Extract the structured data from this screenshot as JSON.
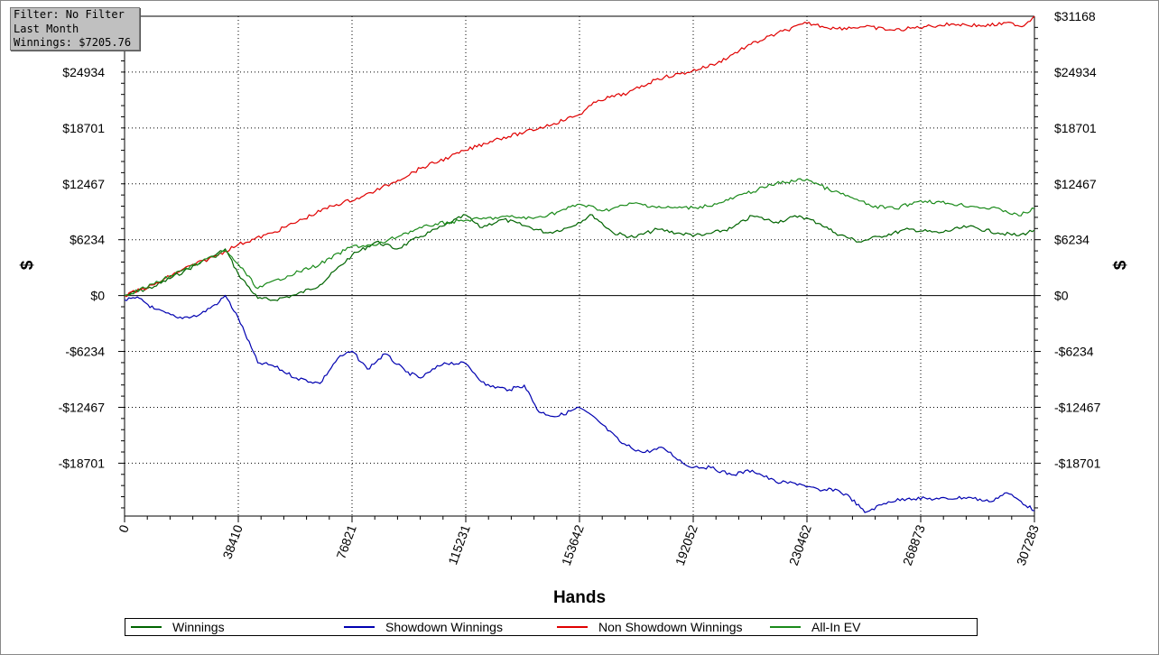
{
  "filter_box": {
    "line1": "Filter: No Filter",
    "line2": "Last Month",
    "line3": "Winnings: $7205.76"
  },
  "legend": [
    {
      "label": "Winnings",
      "color": "#006400"
    },
    {
      "label": "Showdown Winnings",
      "color": "#0000b0"
    },
    {
      "label": "Non Showdown Winnings",
      "color": "#e00000"
    },
    {
      "label": "All-In EV",
      "color": "#1a8a1a"
    }
  ],
  "chart_data": {
    "type": "line",
    "xlabel": "Hands",
    "ylabel": "$",
    "ylabel_right": "$",
    "x_ticks": [
      0,
      38410,
      76821,
      115231,
      153642,
      192052,
      230462,
      268873,
      307283
    ],
    "y_ticks": [
      -18701,
      -12467,
      -6234,
      0,
      6234,
      12467,
      18701,
      24934,
      31168
    ],
    "y_tick_labels": [
      "-$18701",
      "-$12467",
      "-$6234",
      "$0",
      "$6234",
      "$12467",
      "$18701",
      "$24934",
      "$31168"
    ],
    "xlim": [
      0,
      307283
    ],
    "ylim": [
      -24600,
      31168
    ],
    "grid": true,
    "legend_position": "bottom",
    "series": [
      {
        "name": "Winnings",
        "color": "#006400",
        "x": [
          0,
          10000,
          20000,
          30000,
          34000,
          38410,
          45000,
          50000,
          58000,
          66000,
          76821,
          85000,
          92000,
          100000,
          108000,
          115231,
          120000,
          128000,
          135000,
          143000,
          150000,
          158000,
          165000,
          172000,
          180000,
          188000,
          195000,
          205000,
          212000,
          220000,
          228000,
          235000,
          240000,
          248000,
          255000,
          265000,
          275000,
          285000,
          295000,
          302000,
          307283
        ],
        "y": [
          0,
          1000,
          2700,
          4400,
          5200,
          2400,
          -300,
          -500,
          100,
          1200,
          4500,
          6000,
          5200,
          6600,
          7800,
          9000,
          7600,
          8500,
          7800,
          7000,
          7600,
          9000,
          7000,
          6500,
          7400,
          6900,
          6700,
          7500,
          8900,
          8200,
          8900,
          8000,
          7000,
          6000,
          6600,
          7400,
          7000,
          7700,
          7000,
          6700,
          7300
        ]
      },
      {
        "name": "Showdown Winnings",
        "color": "#0000b0",
        "x": [
          0,
          5000,
          10000,
          18000,
          25000,
          32000,
          34000,
          38410,
          45000,
          50000,
          58000,
          66000,
          72000,
          76821,
          82000,
          88000,
          95000,
          100000,
          108000,
          115231,
          122000,
          130000,
          135000,
          140000,
          146000,
          153642,
          160000,
          168000,
          175000,
          182000,
          190000,
          198000,
          205000,
          212000,
          220000,
          228000,
          235000,
          240000,
          245000,
          250000,
          258000,
          265000,
          275000,
          285000,
          292000,
          298000,
          302000,
          307283
        ],
        "y": [
          -500,
          -300,
          -1500,
          -2500,
          -2200,
          -700,
          0,
          -2500,
          -7500,
          -7800,
          -9200,
          -9800,
          -7000,
          -6200,
          -8200,
          -6500,
          -8500,
          -9200,
          -7500,
          -7600,
          -10000,
          -10500,
          -10000,
          -13000,
          -13500,
          -12500,
          -14000,
          -16500,
          -17500,
          -17000,
          -19000,
          -19200,
          -20000,
          -19500,
          -20800,
          -21000,
          -21800,
          -21600,
          -22500,
          -24200,
          -23000,
          -22600,
          -22700,
          -22500,
          -23000,
          -22000,
          -22800,
          -24000
        ]
      },
      {
        "name": "Non Showdown Winnings",
        "color": "#e00000",
        "x": [
          0,
          10000,
          20000,
          30000,
          38410,
          50000,
          60000,
          70000,
          80000,
          90000,
          100000,
          110000,
          115231,
          125000,
          135000,
          145000,
          153642,
          160000,
          170000,
          180000,
          190000,
          200000,
          210000,
          220000,
          230462,
          240000,
          250000,
          260000,
          270000,
          280000,
          290000,
          300000,
          303000,
          307283
        ],
        "y": [
          0,
          1200,
          3000,
          4300,
          5700,
          7000,
          8500,
          10000,
          11000,
          12500,
          14200,
          15500,
          16200,
          17400,
          18200,
          19200,
          20200,
          21800,
          22600,
          24200,
          24900,
          25900,
          27800,
          29200,
          30400,
          29800,
          30000,
          29600,
          30000,
          30300,
          30100,
          30400,
          30000,
          31168
        ]
      },
      {
        "name": "All-In EV",
        "color": "#1a8a1a",
        "x": [
          0,
          10000,
          20000,
          30000,
          34000,
          38410,
          45000,
          55000,
          66000,
          76821,
          85000,
          95000,
          105000,
          115231,
          122000,
          130000,
          138000,
          146000,
          153642,
          162000,
          172000,
          182000,
          192052,
          200000,
          210000,
          220000,
          230462,
          238000,
          245000,
          252000,
          260000,
          268873,
          278000,
          288000,
          296000,
          302000,
          307283
        ],
        "y": [
          0,
          1300,
          2900,
          4300,
          5000,
          3500,
          800,
          2200,
          3500,
          5500,
          5600,
          7000,
          8000,
          8400,
          8600,
          8800,
          8600,
          9300,
          10200,
          9500,
          10300,
          9800,
          9800,
          10200,
          11400,
          12500,
          13000,
          11800,
          11000,
          10000,
          9700,
          10600,
          10300,
          9900,
          9600,
          8900,
          9700
        ]
      }
    ]
  }
}
